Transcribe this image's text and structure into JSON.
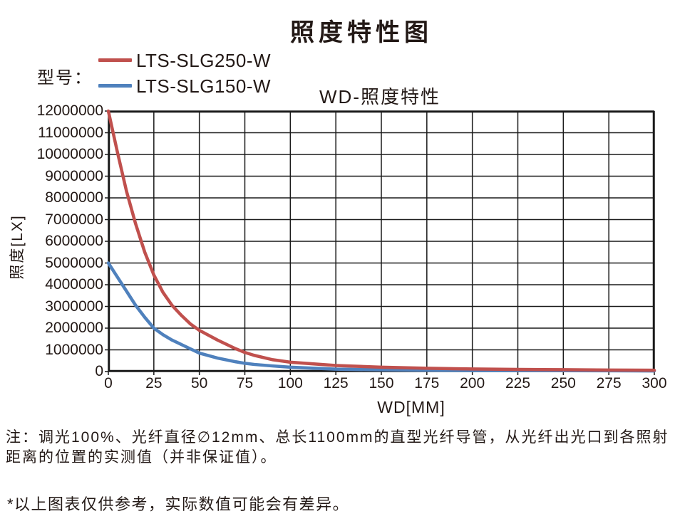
{
  "page": {
    "title": "照度特性图",
    "legend_label": "型号：",
    "notes": [
      "注：调光100%、光纤直径∅12mm、总长1100mm的直型光纤导管，从光纤出光口到各照射",
      "距离的位置的实测值（并非保证值）。"
    ],
    "disclaimer": "*以上图表仅供参考，实际数值可能会有差异。"
  },
  "chart_data": {
    "type": "line",
    "title": "WD-照度特性",
    "xlabel": "WD[MM]",
    "ylabel": "照度[LX]",
    "xlim": [
      0,
      300
    ],
    "ylim": [
      0,
      12000000
    ],
    "xticks": [
      0,
      25,
      50,
      75,
      100,
      125,
      150,
      175,
      200,
      225,
      250,
      275,
      300
    ],
    "yticks": [
      0,
      1000000,
      2000000,
      3000000,
      4000000,
      5000000,
      6000000,
      7000000,
      8000000,
      9000000,
      10000000,
      11000000,
      12000000
    ],
    "grid": true,
    "legend_position": "top-left-outside",
    "x": [
      0,
      5,
      10,
      15,
      20,
      25,
      30,
      35,
      40,
      45,
      50,
      60,
      70,
      75,
      80,
      90,
      100,
      125,
      150,
      175,
      200,
      225,
      250,
      275,
      300
    ],
    "series": [
      {
        "name": "LTS-SLG250-W",
        "color": "#c0504d",
        "values": [
          12000000,
          10100000,
          8300000,
          6800000,
          5500000,
          4450000,
          3650000,
          3050000,
          2600000,
          2200000,
          1900000,
          1450000,
          1050000,
          880000,
          750000,
          550000,
          430000,
          280000,
          200000,
          150000,
          120000,
          100000,
          85000,
          70000,
          60000
        ]
      },
      {
        "name": "LTS-SLG150-W",
        "color": "#4f81bd",
        "values": [
          5000000,
          4350000,
          3700000,
          3050000,
          2500000,
          2000000,
          1700000,
          1450000,
          1250000,
          1050000,
          850000,
          620000,
          450000,
          380000,
          330000,
          260000,
          200000,
          110000,
          80000,
          60000,
          50000,
          45000,
          40000,
          35000,
          30000
        ]
      }
    ],
    "grid_color": "#1a1a1a",
    "text_color": "#231916"
  }
}
